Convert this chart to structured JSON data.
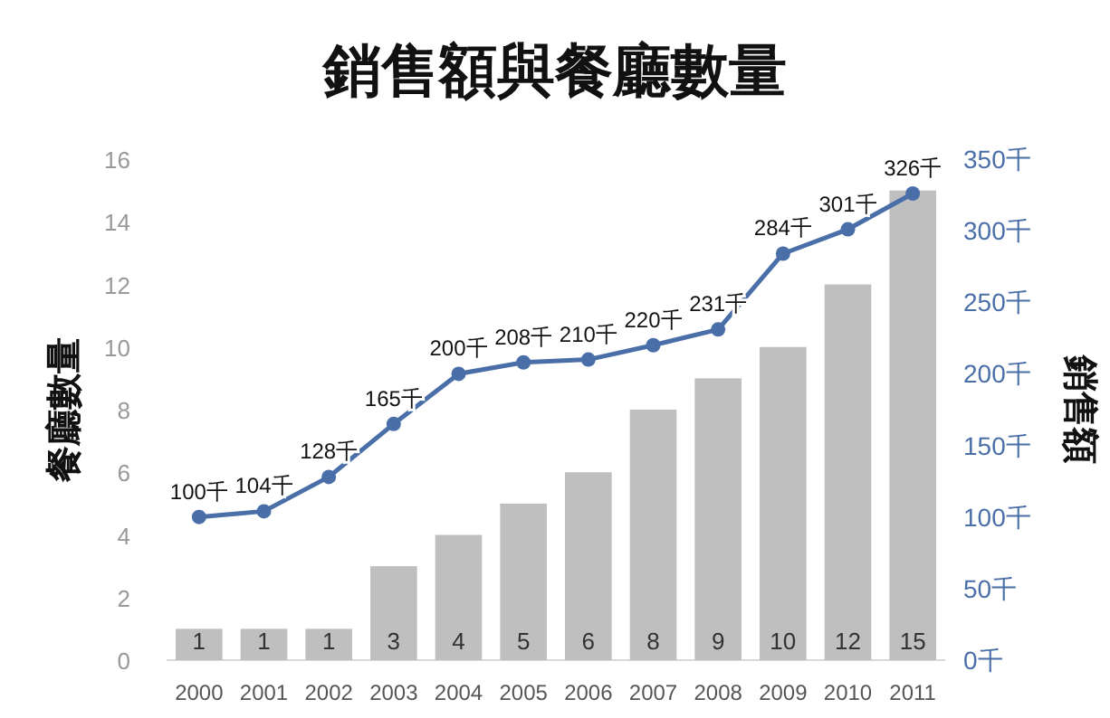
{
  "chart_data": {
    "type": "bar",
    "title": "銷售額與餐廳數量",
    "ylabel": "餐廳數量",
    "y2label": "銷售額",
    "categories": [
      "2000",
      "2001",
      "2002",
      "2003",
      "2004",
      "2005",
      "2006",
      "2007",
      "2008",
      "2009",
      "2010",
      "2011"
    ],
    "ylim": [
      0,
      16
    ],
    "yticks": [
      0,
      2,
      4,
      6,
      8,
      10,
      12,
      14,
      16
    ],
    "y2lim": [
      0,
      350
    ],
    "y2ticks": [
      {
        "value": 0,
        "label": "0千"
      },
      {
        "value": 50,
        "label": "50千"
      },
      {
        "value": 100,
        "label": "100千"
      },
      {
        "value": 150,
        "label": "150千"
      },
      {
        "value": 200,
        "label": "200千"
      },
      {
        "value": 250,
        "label": "250千"
      },
      {
        "value": 300,
        "label": "300千"
      },
      {
        "value": 350,
        "label": "350千"
      }
    ],
    "series": [
      {
        "color": "#bfbfbf",
        "data_labels": true,
        "values": [
          1,
          1,
          1,
          3,
          4,
          5,
          6,
          8,
          9,
          10,
          12,
          15
        ]
      },
      {
        "type": "line",
        "axis": "y2",
        "color": "#4a6fa8",
        "marker": "circle",
        "values": [
          100,
          104,
          128,
          165,
          200,
          208,
          210,
          220,
          231,
          284,
          301,
          326
        ],
        "value_labels": [
          "100千",
          "104千",
          "128千",
          "165千",
          "200千",
          "208千",
          "210千",
          "220千",
          "231千",
          "284千",
          "301千",
          "326千"
        ]
      }
    ]
  }
}
